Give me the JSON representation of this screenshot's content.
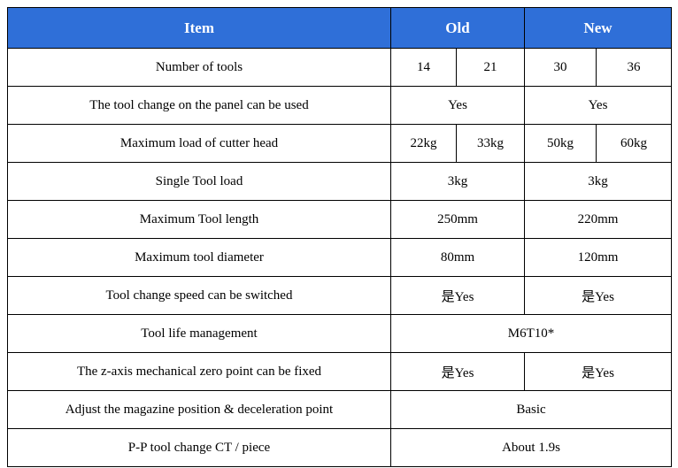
{
  "header": {
    "item": "Item",
    "old": "Old",
    "new": "New"
  },
  "colors": {
    "header_bg": "#2f6fd8",
    "header_text": "#ffffff",
    "border": "#000000"
  },
  "rows": [
    {
      "label": "Number of tools",
      "old": [
        "14",
        "21"
      ],
      "new": [
        "30",
        "36"
      ]
    },
    {
      "label": "The tool change on the panel can be used",
      "old": "Yes",
      "new": "Yes"
    },
    {
      "label": "Maximum load of cutter head",
      "old": [
        "22kg",
        "33kg"
      ],
      "new": [
        "50kg",
        "60kg"
      ]
    },
    {
      "label": "Single Tool load",
      "old": "3kg",
      "new": "3kg"
    },
    {
      "label": "Maximum Tool length",
      "old": "250mm",
      "new": "220mm"
    },
    {
      "label": "Maximum tool diameter",
      "old": "80mm",
      "new": "120mm"
    },
    {
      "label": "Tool change speed can be switched",
      "old": "是Yes",
      "new": "是Yes"
    },
    {
      "label": "Tool life management",
      "merged": "M6T10*"
    },
    {
      "label": "The z-axis mechanical zero point can be fixed",
      "old": "是Yes",
      "new": "是Yes"
    },
    {
      "label": "Adjust the magazine position & deceleration point",
      "merged": "Basic"
    },
    {
      "label": "P-P tool change CT / piece",
      "merged": "About 1.9s"
    }
  ]
}
